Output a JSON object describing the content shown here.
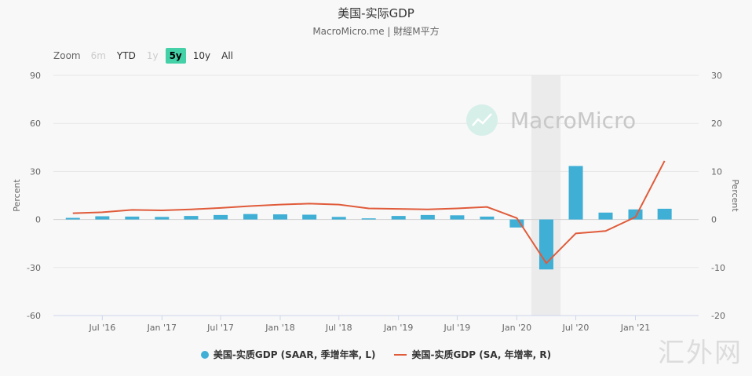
{
  "header": {
    "title": "美国-实际GDP",
    "subtitle": "MacroMicro.me | 財經M平方"
  },
  "zoom": {
    "label": "Zoom",
    "buttons": [
      {
        "label": "6m",
        "state": "disabled"
      },
      {
        "label": "YTD",
        "state": "normal"
      },
      {
        "label": "1y",
        "state": "disabled"
      },
      {
        "label": "5y",
        "state": "active"
      },
      {
        "label": "10y",
        "state": "normal"
      },
      {
        "label": "All",
        "state": "normal"
      }
    ]
  },
  "watermark": {
    "brand": "MacroMicro",
    "site": "汇外网"
  },
  "legend": {
    "bar_series": "美国-实质GDP (SAAR, 季增年率, L)",
    "line_series": "美国-实质GDP (SA, 年增率, R)"
  },
  "colors": {
    "bar": "#3fafd6",
    "line": "#e05b3a",
    "recession_band": "#ebebeb",
    "zoom_active": "#45d1a8"
  },
  "chart_data": {
    "type": "bar+line",
    "title": "美国-实际GDP",
    "x": [
      "2016-04-01",
      "2016-07-01",
      "2016-10-01",
      "2017-01-01",
      "2017-04-01",
      "2017-07-01",
      "2017-10-01",
      "2018-01-01",
      "2018-04-01",
      "2018-07-01",
      "2018-10-01",
      "2019-01-01",
      "2019-04-01",
      "2019-07-01",
      "2019-10-01",
      "2020-01-01",
      "2020-04-01",
      "2020-07-01",
      "2020-10-01",
      "2021-01-01",
      "2021-04-01"
    ],
    "x_range": [
      "2016-02-01",
      "2021-07-15"
    ],
    "x_tick_labels": [
      {
        "date": "2016-07-01",
        "label": "Jul '16"
      },
      {
        "date": "2017-01-01",
        "label": "Jan '17"
      },
      {
        "date": "2017-07-01",
        "label": "Jul '17"
      },
      {
        "date": "2018-01-01",
        "label": "Jan '18"
      },
      {
        "date": "2018-07-01",
        "label": "Jul '18"
      },
      {
        "date": "2019-01-01",
        "label": "Jan '19"
      },
      {
        "date": "2019-07-01",
        "label": "Jul '19"
      },
      {
        "date": "2020-01-01",
        "label": "Jan '20"
      },
      {
        "date": "2020-07-01",
        "label": "Jul '20"
      },
      {
        "date": "2021-01-01",
        "label": "Jan '21"
      }
    ],
    "series": [
      {
        "name": "美国-实质GDP (SAAR, 季增年率, L)",
        "type": "bar",
        "axis": "left",
        "values": [
          1.0,
          2.0,
          1.8,
          1.6,
          2.2,
          2.8,
          3.4,
          3.2,
          3.0,
          1.6,
          0.7,
          2.2,
          2.8,
          2.6,
          1.8,
          -5.0,
          -31.2,
          33.4,
          4.3,
          6.3,
          6.7
        ]
      },
      {
        "name": "美国-实质GDP (SA, 年增率, R)",
        "type": "line",
        "axis": "right",
        "values": [
          1.3,
          1.5,
          2.0,
          1.9,
          2.1,
          2.4,
          2.8,
          3.1,
          3.3,
          3.1,
          2.3,
          2.2,
          2.1,
          2.3,
          2.6,
          0.3,
          -9.1,
          -2.9,
          -2.4,
          0.5,
          12.2
        ]
      }
    ],
    "y_left": {
      "label": "Percent",
      "lim": [
        -60,
        90
      ],
      "ticks": [
        -60,
        -30,
        0,
        30,
        60,
        90
      ]
    },
    "y_right": {
      "label": "Percent",
      "lim": [
        -20,
        30
      ],
      "ticks": [
        -20,
        -10,
        0,
        10,
        20,
        30
      ]
    },
    "shaded_range": [
      "2020-02-15",
      "2020-05-15"
    ],
    "grid": true,
    "legend_position": "bottom-center"
  }
}
